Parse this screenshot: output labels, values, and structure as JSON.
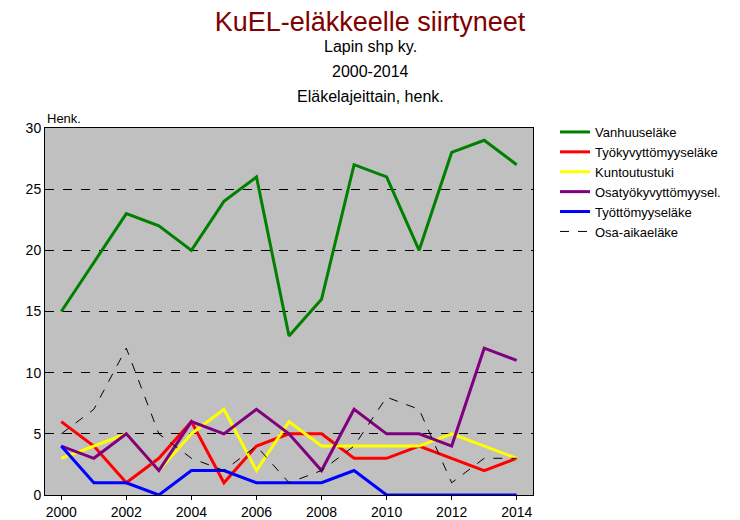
{
  "chart_data": {
    "type": "line",
    "title": "KuEL-eläkkeelle siirtyneet",
    "subtitle": [
      "Lapin shp ky.",
      "2000-2014",
      "Eläkelajeittain, henk."
    ],
    "y_label": "Henk.",
    "x": [
      2000,
      2001,
      2002,
      2003,
      2004,
      2005,
      2006,
      2007,
      2008,
      2009,
      2010,
      2011,
      2012,
      2013,
      2014
    ],
    "xlim": [
      1999.5,
      2014.5
    ],
    "xticks": [
      2000,
      2002,
      2004,
      2006,
      2008,
      2010,
      2012,
      2014
    ],
    "ylim": [
      0,
      30
    ],
    "yticks": [
      0,
      5,
      10,
      15,
      20,
      25,
      30
    ],
    "grid": true,
    "legend": "right",
    "series": [
      {
        "name": "Vanhuuseläke",
        "color": "#008000",
        "line_style": "solid",
        "values": [
          15,
          19,
          23,
          22,
          20,
          24,
          26,
          13,
          16,
          27,
          26,
          20,
          28,
          29,
          27
        ]
      },
      {
        "name": "Työkyvyttömyyseläke",
        "color": "#ff0000",
        "line_style": "solid",
        "values": [
          6,
          4,
          1,
          3,
          6,
          1,
          4,
          5,
          5,
          3,
          3,
          4,
          3,
          2,
          3
        ]
      },
      {
        "name": "Kuntoutustuki",
        "color": "#ffff00",
        "line_style": "solid",
        "values": [
          3,
          4,
          5,
          2,
          5,
          7,
          2,
          6,
          4,
          4,
          4,
          4,
          5,
          4,
          3
        ]
      },
      {
        "name": "Osatyökyvyttömyysel.",
        "color": "#800080",
        "line_style": "solid",
        "values": [
          4,
          3,
          5,
          2,
          6,
          5,
          7,
          5,
          2,
          7,
          5,
          5,
          4,
          12,
          11
        ]
      },
      {
        "name": "Työttömyyseläke",
        "color": "#0000ff",
        "line_style": "solid",
        "values": [
          4,
          1,
          1,
          0,
          2,
          2,
          1,
          1,
          1,
          2,
          0,
          0,
          0,
          0,
          0
        ]
      },
      {
        "name": "Osa-aikaeläke",
        "color": "#000000",
        "line_style": "dashed",
        "values": [
          5,
          7,
          12,
          5,
          3,
          2,
          4,
          1,
          2,
          4,
          8,
          7,
          1,
          3,
          3
        ]
      }
    ]
  }
}
